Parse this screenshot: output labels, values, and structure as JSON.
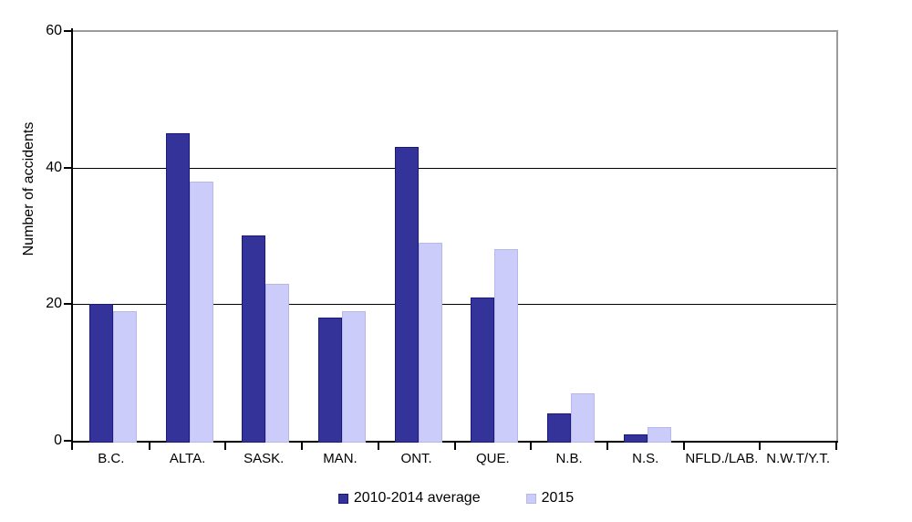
{
  "chart_data": {
    "type": "bar",
    "title": "",
    "xlabel": "",
    "ylabel": "Number of accidents",
    "ylim": [
      0,
      60
    ],
    "yticks": [
      0,
      20,
      40,
      60
    ],
    "grid": "horizontal",
    "legend_position": "bottom",
    "categories": [
      "B.C.",
      "ALTA.",
      "SASK.",
      "MAN.",
      "ONT.",
      "QUE.",
      "N.B.",
      "N.S.",
      "NFLD./LAB.",
      "N.W.T/Y.T."
    ],
    "series": [
      {
        "name": "2010-2014 average",
        "fill_color": "#333399",
        "border_color": "#1a1a7e",
        "values": [
          20,
          45,
          30,
          18,
          43,
          21,
          4,
          1,
          0,
          0
        ]
      },
      {
        "name": "2015",
        "fill_color": "#ccccfa",
        "border_color": "#b7b7ea",
        "values": [
          19,
          38,
          23,
          19,
          29,
          28,
          7,
          2,
          0,
          0
        ]
      }
    ],
    "colors": {
      "background": "#ffffff",
      "gridline": "#000000",
      "axis": "#000000",
      "frame": "#9b9b9b",
      "text": "#000000"
    }
  }
}
